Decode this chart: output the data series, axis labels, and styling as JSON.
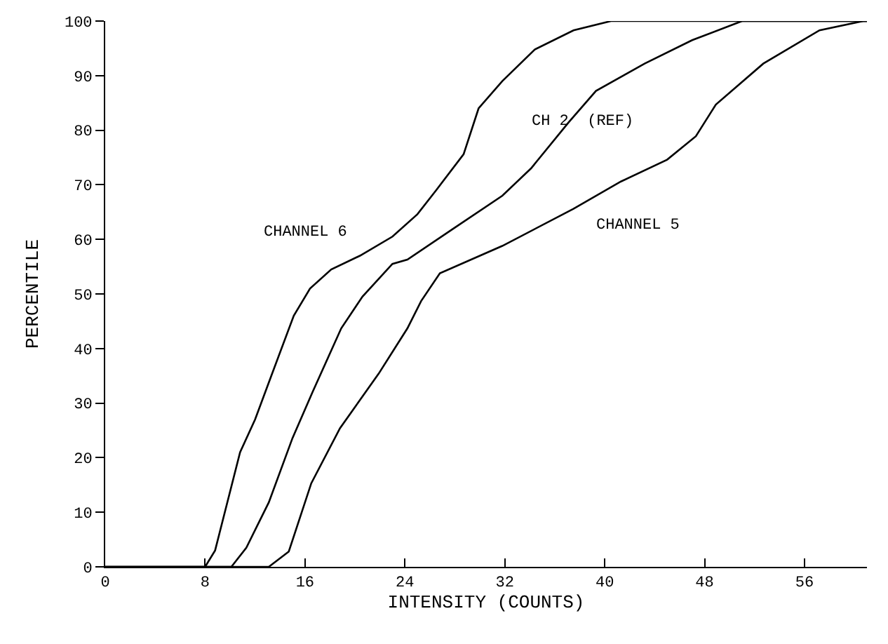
{
  "chart_data": {
    "type": "line",
    "xlabel": "INTENSITY (COUNTS)",
    "ylabel": "PERCENTILE",
    "xlim": [
      0,
      61
    ],
    "xticks": [
      0,
      8,
      16,
      24,
      32,
      40,
      48,
      56
    ],
    "ylim": [
      0,
      100
    ],
    "yticks": [
      0,
      10,
      20,
      30,
      40,
      50,
      60,
      70,
      80,
      90,
      100
    ],
    "legend": false,
    "marker": "none",
    "line_style": "solid",
    "series": [
      {
        "name": "CHANNEL 6",
        "color": "#000000",
        "x": [
          0,
          8,
          8.8,
          10.8,
          12,
          13.3,
          15.1,
          16.4,
          18.1,
          20.4,
          23,
          25,
          26.5,
          28.7,
          29.9,
          31.8,
          34.4,
          37.5,
          40.5,
          61
        ],
        "values": [
          0,
          0,
          3,
          21,
          27,
          35,
          46,
          51,
          54.5,
          57,
          60.5,
          64.6,
          69,
          75.6,
          84,
          89,
          94.8,
          98.3,
          100,
          100
        ]
      },
      {
        "name": "CH 2  (REF)",
        "color": "#000000",
        "x": [
          0,
          10.1,
          11.3,
          13.1,
          15,
          16.6,
          18.9,
          20.6,
          23,
          24.2,
          27.9,
          31.8,
          34.1,
          37.1,
          39.3,
          43.2,
          47,
          51,
          61
        ],
        "values": [
          0,
          0,
          3.5,
          11.8,
          23.6,
          32,
          43.7,
          49.5,
          55.5,
          56.3,
          62,
          68,
          73,
          81.4,
          87.2,
          92.2,
          96.5,
          100,
          100
        ]
      },
      {
        "name": "CHANNEL 5",
        "color": "#000000",
        "x": [
          0,
          13.1,
          14.7,
          16.5,
          18.8,
          21.9,
          24.2,
          25.3,
          26.8,
          31.8,
          37.5,
          41.3,
          45,
          47.3,
          48.9,
          52.7,
          57.2,
          60.7,
          61
        ],
        "values": [
          0,
          0,
          2.8,
          15.3,
          25.4,
          35.4,
          43.7,
          48.7,
          53.8,
          58.8,
          65.6,
          70.6,
          74.6,
          78.9,
          84.7,
          92.2,
          98.3,
          100,
          100
        ]
      }
    ]
  }
}
